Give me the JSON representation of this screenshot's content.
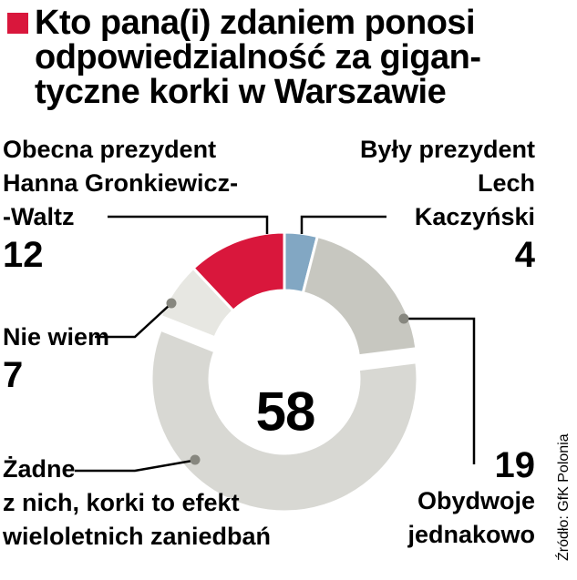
{
  "title": {
    "bullet_color": "#d9173c",
    "lines": [
      "Kto pana(i) zdaniem ponosi",
      "odpowiedzialność za gigan-",
      "tyczne korki w Warszawie"
    ]
  },
  "chart_data": {
    "type": "pie",
    "donut": true,
    "title": "Kto pana(i) zdaniem ponosi odpowiedzialność za gigantyczne korki w Warszawie",
    "start_angle_deg": -43.2,
    "slices": [
      {
        "label": "Obecna prezydent Hanna Gronkiewicz--Waltz",
        "value": 12,
        "color": "#d9173c",
        "exploded": false
      },
      {
        "label": "Były prezydent Lech Kaczyński",
        "value": 4,
        "color": "#82a7c3",
        "exploded": false
      },
      {
        "label": "Obydwoje jednakowo",
        "value": 19,
        "color": "#c7c7c0",
        "exploded": false
      },
      {
        "label": "Żadne z nich, korki to efekt wieloletnich zaniedbań",
        "value": 58,
        "color": "#d8d8d3",
        "exploded": true
      },
      {
        "label": "Nie wiem",
        "value": 7,
        "color": "#e7e7e2",
        "exploded": false
      }
    ],
    "source": "Źródło: GfK Polonia"
  },
  "labels": {
    "hgw": {
      "line1": "Obecna prezydent",
      "line2": "Hanna Gronkiewicz-",
      "line3": "-Waltz"
    },
    "kaczynski": {
      "line1": "Były prezydent",
      "line2": "Lech",
      "line3": "Kaczyński"
    },
    "nie_wiem": {
      "line1": "Nie wiem"
    },
    "zadne": {
      "line1": "Żadne",
      "line2": "z nich, korki to efekt",
      "line3": "wieloletnich zaniedbań"
    },
    "obydwoje": {
      "line1": "Obydwoje",
      "line2": "jednakowo"
    }
  }
}
